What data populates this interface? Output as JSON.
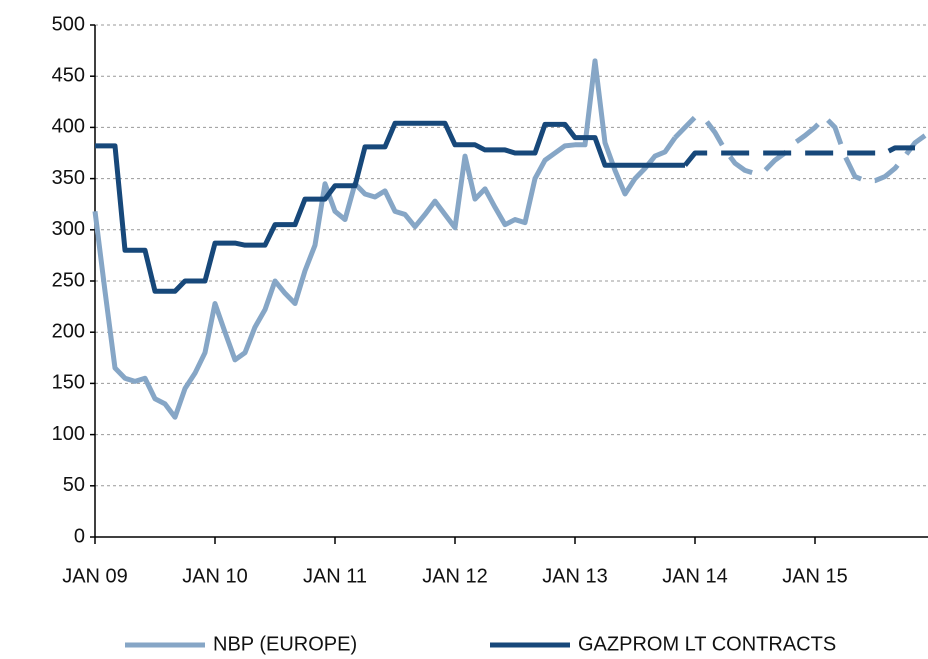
{
  "chart_data": {
    "type": "line",
    "categories": [
      "JAN 09",
      null,
      null,
      null,
      null,
      null,
      null,
      null,
      null,
      null,
      null,
      null,
      "JAN 10",
      null,
      null,
      null,
      null,
      null,
      null,
      null,
      null,
      null,
      null,
      null,
      "JAN 11",
      null,
      null,
      null,
      null,
      null,
      null,
      null,
      null,
      null,
      null,
      null,
      "JAN 12",
      null,
      null,
      null,
      null,
      null,
      null,
      null,
      null,
      null,
      null,
      null,
      "JAN 13",
      null,
      null,
      null,
      null,
      null,
      null,
      null,
      null,
      null,
      null,
      null,
      "JAN 14",
      null,
      null,
      null,
      null,
      null,
      null,
      null,
      null,
      null,
      null,
      null,
      "JAN 15",
      null,
      null,
      null,
      null,
      null,
      null,
      null,
      null,
      null,
      null,
      null
    ],
    "series": [
      {
        "name": "NBP (EUROPE)",
        "color": "#86a6c6",
        "values": [
          318,
          240,
          165,
          155,
          152,
          155,
          135,
          130,
          117,
          145,
          160,
          180,
          228,
          200,
          173,
          180,
          205,
          222,
          250,
          238,
          228,
          260,
          285,
          345,
          318,
          310,
          345,
          335,
          332,
          338,
          318,
          315,
          303,
          315,
          328,
          315,
          302,
          372,
          330,
          340,
          322,
          305,
          310,
          307,
          350,
          368,
          375,
          382,
          383,
          383,
          465,
          385,
          358,
          335,
          350,
          360,
          372,
          376,
          390,
          null,
          null,
          null,
          null,
          null,
          null,
          null,
          null,
          null,
          null,
          null,
          null,
          null,
          null,
          null,
          null,
          null,
          null,
          null,
          null,
          null,
          null,
          null,
          null,
          null
        ],
        "forecast": [
          null,
          null,
          null,
          null,
          null,
          null,
          null,
          null,
          null,
          null,
          null,
          null,
          null,
          null,
          null,
          null,
          null,
          null,
          null,
          null,
          null,
          null,
          null,
          null,
          null,
          null,
          null,
          null,
          null,
          null,
          null,
          null,
          null,
          null,
          null,
          null,
          null,
          null,
          null,
          null,
          null,
          null,
          null,
          null,
          null,
          null,
          null,
          null,
          null,
          null,
          null,
          null,
          null,
          null,
          null,
          null,
          null,
          null,
          390,
          400,
          410,
          408,
          395,
          378,
          365,
          358,
          355,
          358,
          368,
          375,
          385,
          392,
          400,
          410,
          400,
          372,
          352,
          348,
          348,
          352,
          360,
          372,
          385,
          392
        ]
      },
      {
        "name": "GAZPROM LT CONTRACTS",
        "color": "#17487a",
        "values": [
          382,
          382,
          382,
          280,
          280,
          280,
          240,
          240,
          240,
          250,
          250,
          250,
          287,
          287,
          287,
          285,
          285,
          285,
          305,
          305,
          305,
          330,
          330,
          330,
          343,
          343,
          343,
          381,
          381,
          381,
          404,
          404,
          404,
          404,
          404,
          404,
          383,
          383,
          383,
          378,
          378,
          378,
          375,
          375,
          375,
          403,
          403,
          403,
          390,
          390,
          390,
          363,
          363,
          363,
          363,
          363,
          363,
          363,
          363,
          363,
          null,
          null,
          null,
          null,
          null,
          null,
          null,
          null,
          null,
          null,
          null,
          null,
          null,
          null,
          null,
          null,
          null,
          null,
          null,
          null,
          null,
          null,
          null,
          null
        ],
        "forecast": [
          null,
          null,
          null,
          null,
          null,
          null,
          null,
          null,
          null,
          null,
          null,
          null,
          null,
          null,
          null,
          null,
          null,
          null,
          null,
          null,
          null,
          null,
          null,
          null,
          null,
          null,
          null,
          null,
          null,
          null,
          null,
          null,
          null,
          null,
          null,
          null,
          null,
          null,
          null,
          null,
          null,
          null,
          null,
          null,
          null,
          null,
          null,
          null,
          null,
          null,
          null,
          null,
          null,
          null,
          null,
          null,
          null,
          null,
          null,
          363,
          375,
          375,
          375,
          375,
          375,
          375,
          375,
          375,
          375,
          375,
          375,
          375,
          375,
          375,
          375,
          375,
          375,
          375,
          375,
          375,
          380,
          380,
          380
        ]
      }
    ],
    "ylim": [
      0,
      500
    ],
    "yticks": [
      0,
      50,
      100,
      150,
      200,
      250,
      300,
      350,
      400,
      450,
      500
    ],
    "grid": true,
    "legend": "bottom"
  }
}
